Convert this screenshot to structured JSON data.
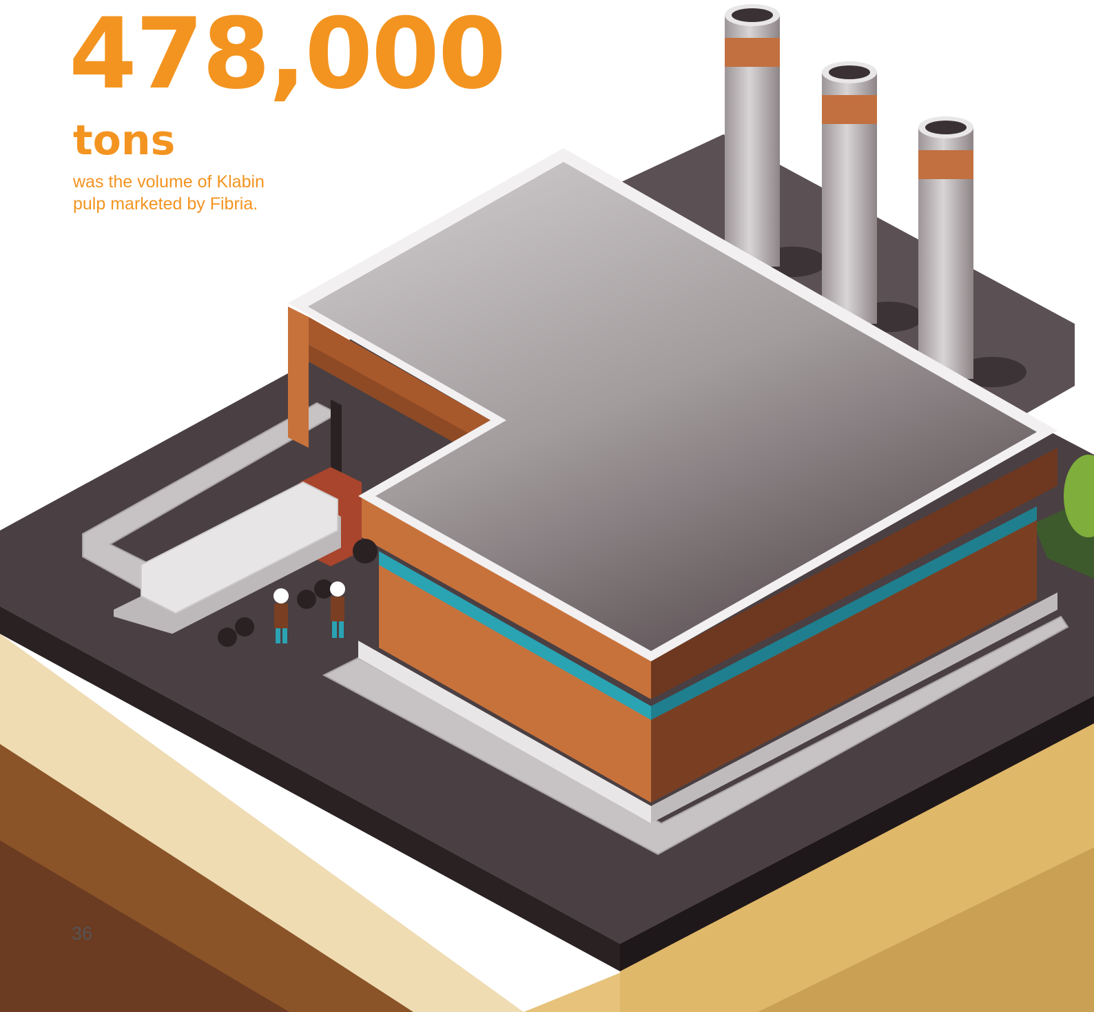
{
  "headline": {
    "value": "478,000",
    "unit": "tons",
    "caption": "was the volume of Klabin pulp marketed by Fibria."
  },
  "page_number": "36",
  "colors": {
    "accent": "#f39420",
    "roof": "#b9b4b5",
    "facade": "#c8723b",
    "glass_strip": "#2aa3b3",
    "ground": "#4a3f42",
    "soil": "#8a5428"
  }
}
